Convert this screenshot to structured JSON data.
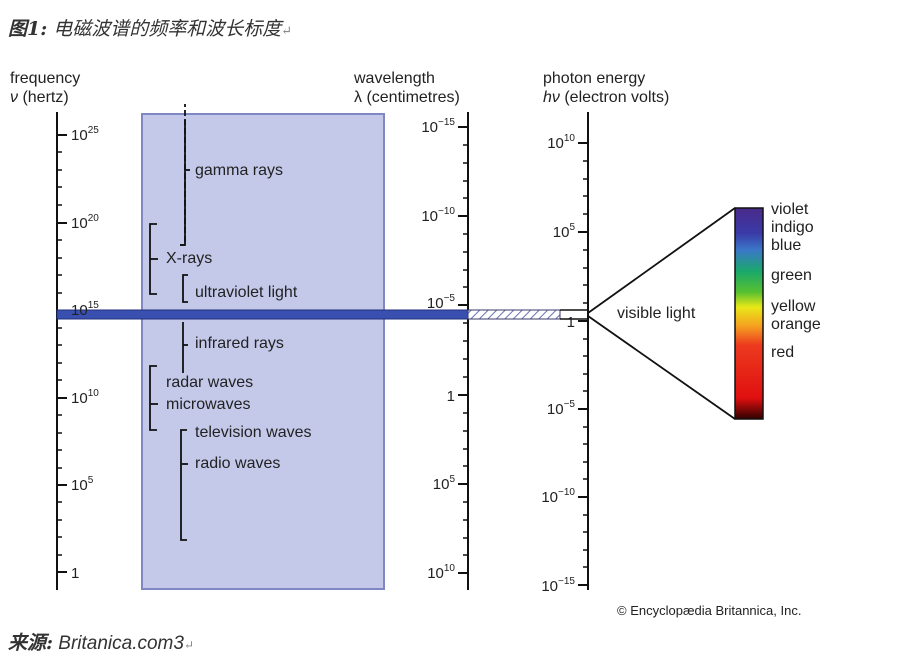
{
  "caption": {
    "prefix": "图1:",
    "text": " 电磁波谱的频率和波长标度",
    "mark": "↵"
  },
  "source": {
    "prefix": "来源:",
    "text": " Britanica.com3",
    "mark": "↵"
  },
  "columns": {
    "frequency": {
      "title": "frequency",
      "unit_sym": "ν",
      "unit": " (hertz)"
    },
    "wavelength": {
      "title": "wavelength",
      "unit_sym": "λ",
      "unit": " (centimetres)"
    },
    "energy": {
      "title": "photon energy",
      "unit_sym": "hν",
      "unit": " (electron volts)"
    }
  },
  "frequency_ticks": [
    {
      "base": "10",
      "exp": "25"
    },
    {
      "base": "10",
      "exp": "20"
    },
    {
      "base": "10",
      "exp": "15"
    },
    {
      "base": "10",
      "exp": "10"
    },
    {
      "base": "10",
      "exp": "5"
    },
    {
      "base": "1",
      "exp": ""
    }
  ],
  "wavelength_ticks": [
    {
      "base": "10",
      "exp": "−15"
    },
    {
      "base": "10",
      "exp": "−10"
    },
    {
      "base": "10",
      "exp": "−5"
    },
    {
      "base": "1",
      "exp": ""
    },
    {
      "base": "10",
      "exp": "5"
    },
    {
      "base": "10",
      "exp": "10"
    }
  ],
  "energy_ticks": [
    {
      "base": "10",
      "exp": "10"
    },
    {
      "base": "10",
      "exp": "5"
    },
    {
      "base": "1",
      "exp": ""
    },
    {
      "base": "10",
      "exp": "−5"
    },
    {
      "base": "10",
      "exp": "−10"
    },
    {
      "base": "10",
      "exp": "−15"
    }
  ],
  "bands": {
    "gamma": "gamma rays",
    "xray": "X-rays",
    "uv": "ultraviolet light",
    "ir": "infrared rays",
    "radar": "radar waves",
    "microwave": "microwaves",
    "tv": "television waves",
    "radio": "radio waves"
  },
  "visible_label": "visible light",
  "visible_colors": [
    "violet",
    "indigo",
    "blue",
    "green",
    "yellow",
    "orange",
    "red"
  ],
  "credit": "© Encyclopædia Britannica, Inc.",
  "colors": {
    "band_fill": "#c4c9ea",
    "band_edge": "#8088c4",
    "visible_bar": "#3a50b0"
  }
}
